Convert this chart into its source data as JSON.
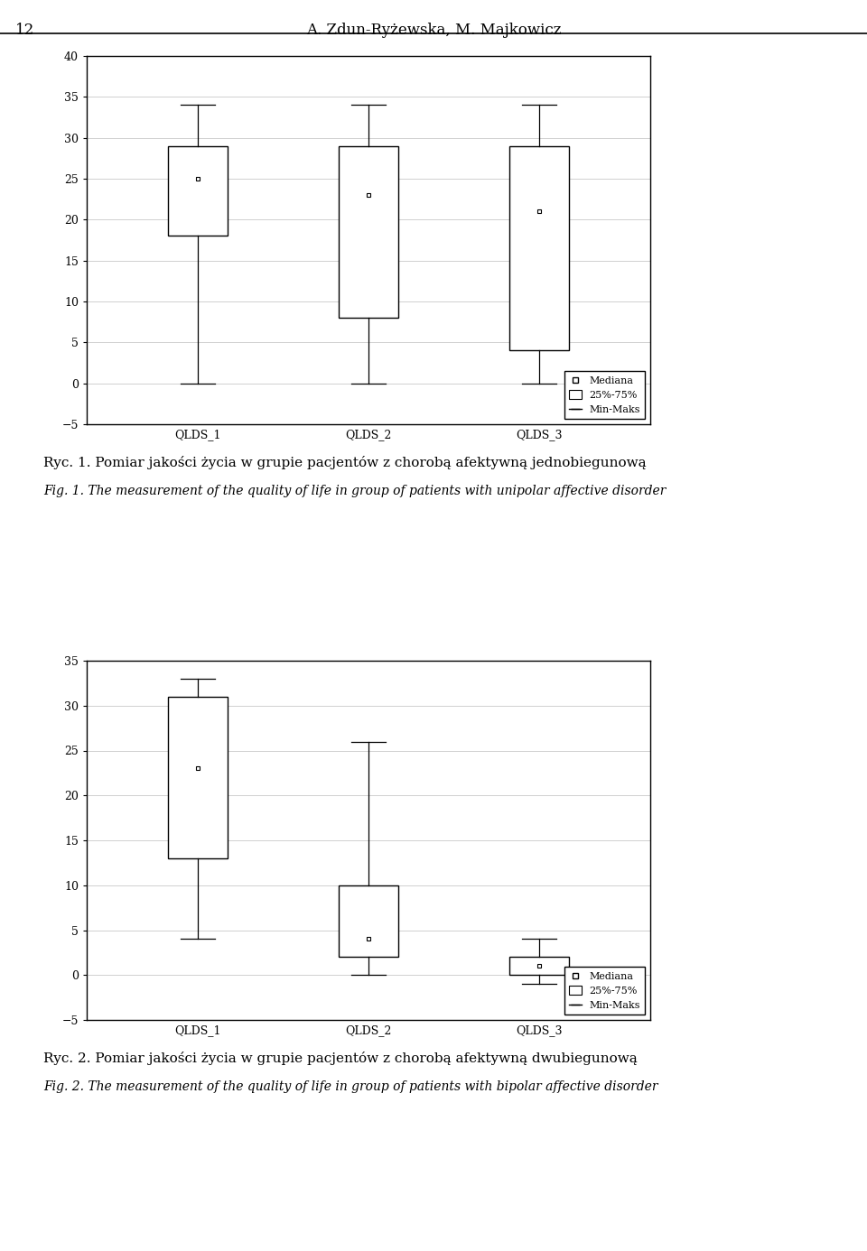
{
  "chart1": {
    "categories": [
      "QLDS_1",
      "QLDS_2",
      "QLDS_3"
    ],
    "boxes": [
      {
        "median": 25,
        "q1": 18,
        "q3": 29,
        "min": 0,
        "max": 34
      },
      {
        "median": 23,
        "q1": 8,
        "q3": 29,
        "min": 0,
        "max": 34
      },
      {
        "median": 21,
        "q1": 4,
        "q3": 29,
        "min": 0,
        "max": 34
      }
    ],
    "ylim": [
      -5,
      40
    ],
    "yticks": [
      -5,
      0,
      5,
      10,
      15,
      20,
      25,
      30,
      35,
      40
    ]
  },
  "chart2": {
    "categories": [
      "QLDS_1",
      "QLDS_2",
      "QLDS_3"
    ],
    "boxes": [
      {
        "median": 23,
        "q1": 13,
        "q3": 31,
        "min": 4,
        "max": 33
      },
      {
        "median": 4,
        "q1": 2,
        "q3": 10,
        "min": 0,
        "max": 26
      },
      {
        "median": 1,
        "q1": 0,
        "q3": 2,
        "min": -1,
        "max": 4
      }
    ],
    "ylim": [
      -5,
      35
    ],
    "yticks": [
      -5,
      0,
      5,
      10,
      15,
      20,
      25,
      30,
      35
    ]
  },
  "header_text": "A. Zdun-Ryżewska, M. Majkowicz",
  "page_number": "12",
  "caption1_pl": "Ryc. 1. Pomiar jakości życia w grupie pacjentów z chorobą afektywną jednobiegunową",
  "caption1_en": "Fig. 1. The measurement of the quality of life in group of patients with unipolar affective disorder",
  "caption2_pl": "Ryc. 2. Pomiar jakości życia w grupie pacjentów z chorobą afektywną dwubiegunową",
  "caption2_en": "Fig. 2. The measurement of the quality of life in group of patients with bipolar affective disorder",
  "legend_labels": [
    "Mediana",
    "25%-75%",
    "Min-Maks"
  ],
  "box_color": "#ffffff",
  "box_edge_color": "#000000",
  "whisker_color": "#000000",
  "box_width": 0.35,
  "background_color": "#ffffff",
  "grid_color": "#d0d0d0",
  "font_size_caption_pl": 11,
  "font_size_caption_en": 10,
  "font_size_header": 12,
  "font_size_axis_tick": 9,
  "font_size_xtick": 9,
  "font_size_legend": 8
}
